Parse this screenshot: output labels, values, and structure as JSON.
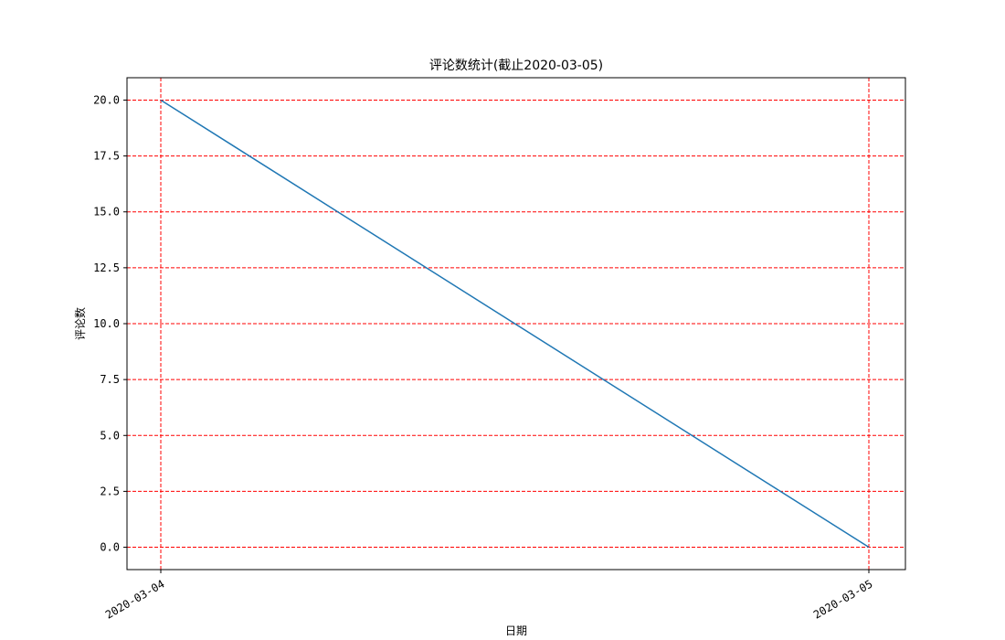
{
  "chart_data": {
    "type": "line",
    "title": "评论数统计(截止2020-03-05)",
    "xlabel": "日期",
    "ylabel": "评论数",
    "x": [
      "2020-03-04",
      "2020-03-05"
    ],
    "series": [
      {
        "values": [
          20,
          0
        ],
        "color": "#1f77b4"
      }
    ],
    "ylim": [
      -1,
      21
    ],
    "yticks": [
      0,
      2.5,
      5,
      7.5,
      10,
      12.5,
      15,
      17.5,
      20
    ],
    "ytick_labels": [
      "0.0",
      "2.5",
      "5.0",
      "7.5",
      "10.0",
      "12.5",
      "15.0",
      "17.5",
      "20.0"
    ],
    "grid": true,
    "grid_style": "dashed",
    "grid_color": "#ff0000",
    "xtick_rotation_degrees": 30
  }
}
